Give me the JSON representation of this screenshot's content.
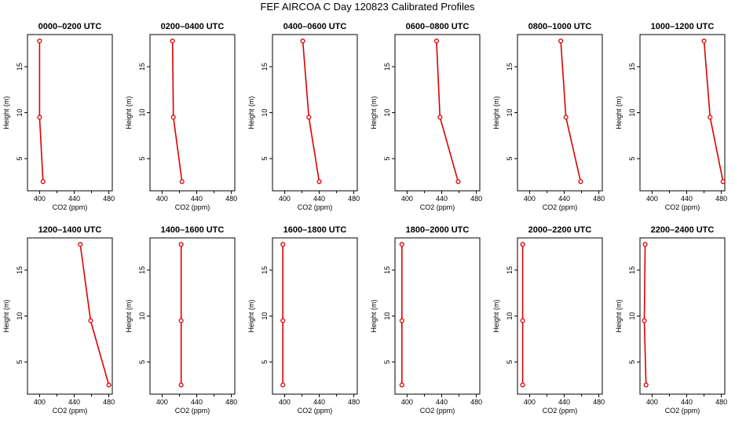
{
  "figure_title": "FEF AIRCOA C  Day 120823  Calibrated Profiles",
  "style": {
    "line_color": "#dd0000",
    "marker_color": "#dd0000",
    "axis_color": "#000000"
  },
  "chart_data": [
    {
      "type": "line",
      "title": "0000–0200 UTC",
      "xlabel": "CO2 (ppm)",
      "ylabel": "Height (m)",
      "xlim": [
        386,
        484
      ],
      "ylim": [
        1.5,
        18.5
      ],
      "xticks": [
        400,
        440,
        480
      ],
      "yticks": [
        5,
        10,
        15
      ],
      "x": [
        400,
        400,
        404
      ],
      "y": [
        17.8,
        9.5,
        2.5
      ]
    },
    {
      "type": "line",
      "title": "0200–0400 UTC",
      "xlabel": "CO2 (ppm)",
      "ylabel": "Height (m)",
      "xlim": [
        386,
        484
      ],
      "ylim": [
        1.5,
        18.5
      ],
      "xticks": [
        400,
        440,
        480
      ],
      "yticks": [
        5,
        10,
        15
      ],
      "x": [
        412,
        413,
        423
      ],
      "y": [
        17.8,
        9.5,
        2.5
      ]
    },
    {
      "type": "line",
      "title": "0400–0600 UTC",
      "xlabel": "CO2 (ppm)",
      "ylabel": "Height (m)",
      "xlim": [
        386,
        484
      ],
      "ylim": [
        1.5,
        18.5
      ],
      "xticks": [
        400,
        440,
        480
      ],
      "yticks": [
        5,
        10,
        15
      ],
      "x": [
        421,
        428,
        440
      ],
      "y": [
        17.8,
        9.5,
        2.5
      ]
    },
    {
      "type": "line",
      "title": "0600–0800 UTC",
      "xlabel": "CO2 (ppm)",
      "ylabel": "Height (m)",
      "xlim": [
        386,
        484
      ],
      "ylim": [
        1.5,
        18.5
      ],
      "xticks": [
        400,
        440,
        480
      ],
      "yticks": [
        5,
        10,
        15
      ],
      "x": [
        434,
        438,
        459
      ],
      "y": [
        17.8,
        9.5,
        2.5
      ]
    },
    {
      "type": "line",
      "title": "0800–1000 UTC",
      "xlabel": "CO2 (ppm)",
      "ylabel": "Height (m)",
      "xlim": [
        386,
        484
      ],
      "ylim": [
        1.5,
        18.5
      ],
      "xticks": [
        400,
        440,
        480
      ],
      "yticks": [
        5,
        10,
        15
      ],
      "x": [
        436,
        442,
        459
      ],
      "y": [
        17.8,
        9.5,
        2.5
      ]
    },
    {
      "type": "line",
      "title": "1000–1200 UTC",
      "xlabel": "CO2 (ppm)",
      "ylabel": "Height (m)",
      "xlim": [
        386,
        484
      ],
      "ylim": [
        1.5,
        18.5
      ],
      "xticks": [
        400,
        440,
        480
      ],
      "yticks": [
        5,
        10,
        15
      ],
      "x": [
        460,
        467,
        482
      ],
      "y": [
        17.8,
        9.5,
        2.5
      ]
    },
    {
      "type": "line",
      "title": "1200–1400 UTC",
      "xlabel": "CO2 (ppm)",
      "ylabel": "Height (m)",
      "xlim": [
        386,
        484
      ],
      "ylim": [
        1.5,
        18.5
      ],
      "xticks": [
        400,
        440,
        480
      ],
      "yticks": [
        5,
        10,
        15
      ],
      "x": [
        447,
        459,
        480
      ],
      "y": [
        17.8,
        9.5,
        2.5
      ]
    },
    {
      "type": "line",
      "title": "1400–1600 UTC",
      "xlabel": "CO2 (ppm)",
      "ylabel": "Height (m)",
      "xlim": [
        386,
        484
      ],
      "ylim": [
        1.5,
        18.5
      ],
      "xticks": [
        400,
        440,
        480
      ],
      "yticks": [
        5,
        10,
        15
      ],
      "x": [
        422,
        422,
        422
      ],
      "y": [
        17.8,
        9.5,
        2.5
      ]
    },
    {
      "type": "line",
      "title": "1600–1800 UTC",
      "xlabel": "CO2 (ppm)",
      "ylabel": "Height (m)",
      "xlim": [
        386,
        484
      ],
      "ylim": [
        1.5,
        18.5
      ],
      "xticks": [
        400,
        440,
        480
      ],
      "yticks": [
        5,
        10,
        15
      ],
      "x": [
        398,
        398,
        398
      ],
      "y": [
        17.8,
        9.5,
        2.5
      ]
    },
    {
      "type": "line",
      "title": "1800–2000 UTC",
      "xlabel": "CO2 (ppm)",
      "ylabel": "Height (m)",
      "xlim": [
        386,
        484
      ],
      "ylim": [
        1.5,
        18.5
      ],
      "xticks": [
        400,
        440,
        480
      ],
      "yticks": [
        5,
        10,
        15
      ],
      "x": [
        394,
        394,
        394
      ],
      "y": [
        17.8,
        9.5,
        2.5
      ]
    },
    {
      "type": "line",
      "title": "2000–2200 UTC",
      "xlabel": "CO2 (ppm)",
      "ylabel": "Height (m)",
      "xlim": [
        386,
        484
      ],
      "ylim": [
        1.5,
        18.5
      ],
      "xticks": [
        400,
        440,
        480
      ],
      "yticks": [
        5,
        10,
        15
      ],
      "x": [
        392,
        392,
        392
      ],
      "y": [
        17.8,
        9.5,
        2.5
      ]
    },
    {
      "type": "line",
      "title": "2200–2400 UTC",
      "xlabel": "CO2 (ppm)",
      "ylabel": "Height (m)",
      "xlim": [
        386,
        484
      ],
      "ylim": [
        1.5,
        18.5
      ],
      "xticks": [
        400,
        440,
        480
      ],
      "yticks": [
        5,
        10,
        15
      ],
      "x": [
        392,
        391,
        393
      ],
      "y": [
        17.8,
        9.5,
        2.5
      ]
    }
  ]
}
